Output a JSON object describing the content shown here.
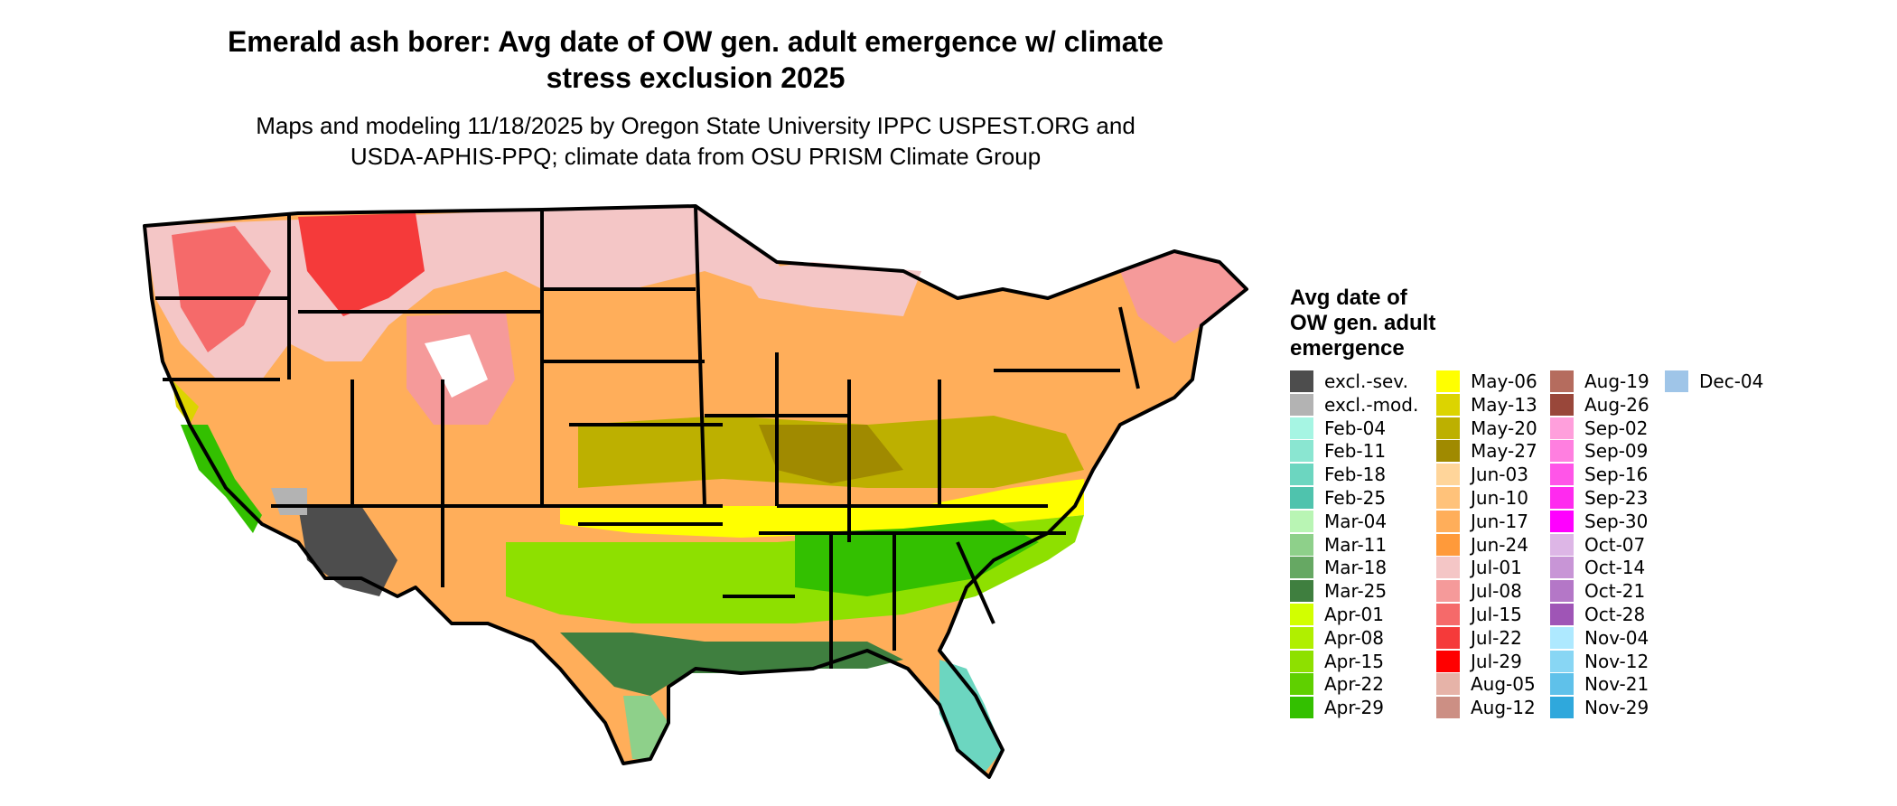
{
  "title": "Emerald ash borer: Avg date of OW gen. adult emergence w/ climate\nstress exclusion 2025",
  "subtitle": "Maps and modeling 11/18/2025 by Oregon State University IPPC USPEST.ORG and\nUSDA-APHIS-PPQ; climate data from OSU PRISM Climate Group",
  "legend": {
    "title": "Avg date of\nOW gen. adult\nemergence",
    "items": [
      {
        "label": "excl.-sev.",
        "color": "#4d4d4d"
      },
      {
        "label": "excl.-mod.",
        "color": "#b3b3b3"
      },
      {
        "label": "Feb-04",
        "color": "#a6f5e3"
      },
      {
        "label": "Feb-11",
        "color": "#8ae6d1"
      },
      {
        "label": "Feb-18",
        "color": "#6cd6c0"
      },
      {
        "label": "Feb-25",
        "color": "#4fc3ad"
      },
      {
        "label": "Mar-04",
        "color": "#b9f5b4"
      },
      {
        "label": "Mar-11",
        "color": "#8ed08a"
      },
      {
        "label": "Mar-18",
        "color": "#66a863"
      },
      {
        "label": "Mar-25",
        "color": "#3f7f3f"
      },
      {
        "label": "Apr-01",
        "color": "#d2ff00"
      },
      {
        "label": "Apr-08",
        "color": "#b0ef00"
      },
      {
        "label": "Apr-15",
        "color": "#8ee000"
      },
      {
        "label": "Apr-22",
        "color": "#5fd000"
      },
      {
        "label": "Apr-29",
        "color": "#33c000"
      },
      {
        "label": "May-06",
        "color": "#ffff00"
      },
      {
        "label": "May-13",
        "color": "#dcd400"
      },
      {
        "label": "May-20",
        "color": "#bdb000"
      },
      {
        "label": "May-27",
        "color": "#a08a00"
      },
      {
        "label": "Jun-03",
        "color": "#ffd59a"
      },
      {
        "label": "Jun-10",
        "color": "#ffc27a"
      },
      {
        "label": "Jun-17",
        "color": "#ffae5a"
      },
      {
        "label": "Jun-24",
        "color": "#ff9a3a"
      },
      {
        "label": "Jul-01",
        "color": "#f4c6c6"
      },
      {
        "label": "Jul-08",
        "color": "#f59a9a"
      },
      {
        "label": "Jul-15",
        "color": "#f56a6a"
      },
      {
        "label": "Jul-22",
        "color": "#f53a3a"
      },
      {
        "label": "Jul-29",
        "color": "#ff0000"
      },
      {
        "label": "Aug-05",
        "color": "#e6b3a8"
      },
      {
        "label": "Aug-12",
        "color": "#cc8f84"
      },
      {
        "label": "Aug-19",
        "color": "#b56c5e"
      },
      {
        "label": "Aug-26",
        "color": "#99473a"
      },
      {
        "label": "Sep-02",
        "color": "#ff9fdc"
      },
      {
        "label": "Sep-09",
        "color": "#ff7fe0"
      },
      {
        "label": "Sep-16",
        "color": "#ff55e8"
      },
      {
        "label": "Sep-23",
        "color": "#ff2aef"
      },
      {
        "label": "Sep-30",
        "color": "#ff00ff"
      },
      {
        "label": "Oct-07",
        "color": "#ddb6e6"
      },
      {
        "label": "Oct-14",
        "color": "#c895d6"
      },
      {
        "label": "Oct-21",
        "color": "#b477c7"
      },
      {
        "label": "Oct-28",
        "color": "#9f55b6"
      },
      {
        "label": "Nov-04",
        "color": "#aee9ff"
      },
      {
        "label": "Nov-12",
        "color": "#88d6f4"
      },
      {
        "label": "Nov-21",
        "color": "#5fc1ea"
      },
      {
        "label": "Nov-29",
        "color": "#2fa8dc"
      },
      {
        "label": "Dec-04",
        "color": "#9fc5e8"
      }
    ]
  }
}
